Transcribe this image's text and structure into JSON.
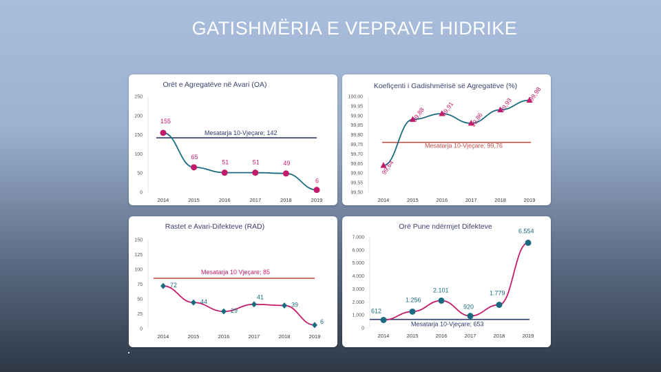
{
  "page": {
    "title": "GATISHMËRIA E VEPRAVE HIDRIKE"
  },
  "chart_data": [
    {
      "id": "c1",
      "type": "line",
      "title": "Orët e Agregatëve në Avari (OA)",
      "categories": [
        "2014",
        "2015",
        "2016",
        "2017",
        "2018",
        "2019"
      ],
      "series": [
        {
          "values": [
            155,
            65,
            51,
            51,
            49,
            6
          ]
        }
      ],
      "labels": [
        "155",
        "65",
        "51",
        "51",
        "49",
        "6"
      ],
      "ylim": [
        0,
        250
      ],
      "yticks": [
        "0",
        "50",
        "100",
        "150",
        "200",
        "250"
      ],
      "average": {
        "label": "Mesatarja 10-Vjeçare; 142",
        "value": 142
      },
      "marker": "circle",
      "colors": {
        "line": "#1a6b80",
        "marker": "#c41a6c",
        "label": "#c41a6c",
        "average": "#2b3a6b",
        "avg_label": "#2b3a6b"
      },
      "grid": false
    },
    {
      "id": "c2",
      "type": "line",
      "title": "Koefiçenti i Gadishmërisë së Agregatëve (%)",
      "categories": [
        "2014",
        "2015",
        "2016",
        "2017",
        "2018",
        "2019"
      ],
      "series": [
        {
          "values": [
            99.64,
            99.88,
            99.91,
            99.86,
            99.93,
            99.98
          ]
        }
      ],
      "labels": [
        "99,64",
        "99,88",
        "99,91",
        "99,86",
        "99,93",
        "99,98"
      ],
      "ylim": [
        99.5,
        100.0
      ],
      "yticks": [
        "99,50",
        "99,55",
        "99,60",
        "99,65",
        "99,70",
        "99,75",
        "99,80",
        "99,85",
        "99,90",
        "99,95",
        "100,00"
      ],
      "average": {
        "label": "Mesatarja 10-Vjeçare; 99,76",
        "value": 99.76
      },
      "marker": "triangle",
      "colors": {
        "line": "#1a6b80",
        "marker": "#c41a6c",
        "label": "#c41a6c",
        "average": "#c0504d",
        "avg_label": "#c0504d"
      },
      "grid": false
    },
    {
      "id": "c3",
      "type": "line",
      "title": "Rastet e Avari-Difekteve (RAD)",
      "categories": [
        "2014",
        "2015",
        "2016",
        "2017",
        "2018",
        "2019"
      ],
      "series": [
        {
          "values": [
            72,
            44,
            29,
            41,
            39,
            6
          ]
        }
      ],
      "labels": [
        "72",
        "44",
        "29",
        "41",
        "39",
        "6"
      ],
      "ylim": [
        0,
        150
      ],
      "yticks": [
        "0",
        "25",
        "50",
        "75",
        "100",
        "125",
        "150"
      ],
      "average": {
        "label": "Mesatarja 10 Vjeçare; 85",
        "value": 85
      },
      "marker": "diamond",
      "colors": {
        "line": "#c41a6c",
        "marker": "#1a6b80",
        "label": "#1a6b80",
        "average": "#c0504d",
        "avg_label": "#c41a6c"
      },
      "grid": false
    },
    {
      "id": "c4",
      "type": "line",
      "title": "Orë Pune ndërmjet Difekteve",
      "categories": [
        "2014",
        "2015",
        "2016",
        "2017",
        "2018",
        "2019"
      ],
      "series": [
        {
          "values": [
            612,
            1256,
            2101,
            920,
            1779,
            6554
          ]
        }
      ],
      "labels": [
        "612",
        "1.256",
        "2.101",
        "920",
        "1.779",
        "6.554"
      ],
      "ylim": [
        0,
        7000
      ],
      "yticks": [
        "0",
        "1.000",
        "2.000",
        "3.000",
        "4.000",
        "5.000",
        "6.000",
        "7.000"
      ],
      "average": {
        "label": "Mesatarja 10-Vjeçare; 653",
        "value": 653
      },
      "marker": "circle",
      "colors": {
        "line": "#c41a6c",
        "marker": "#1a6b80",
        "label": "#1a6b80",
        "average": "#2b3a6b",
        "avg_label": "#2b3a6b"
      },
      "grid": false
    }
  ]
}
